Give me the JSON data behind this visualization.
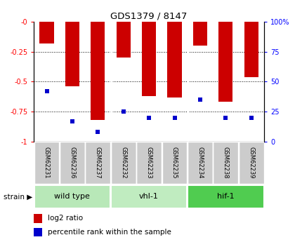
{
  "title": "GDS1379 / 8147",
  "samples": [
    "GSM62231",
    "GSM62236",
    "GSM62237",
    "GSM62232",
    "GSM62233",
    "GSM62235",
    "GSM62234",
    "GSM62238",
    "GSM62239"
  ],
  "log2_ratio": [
    -0.18,
    -0.54,
    -0.82,
    -0.3,
    -0.62,
    -0.63,
    -0.2,
    -0.67,
    -0.46
  ],
  "percentile_rank": [
    42,
    17,
    8,
    25,
    20,
    20,
    35,
    20,
    20
  ],
  "group_info": [
    {
      "start": 0,
      "end": 2,
      "label": "wild type",
      "color": "#b8e8b8"
    },
    {
      "start": 3,
      "end": 5,
      "label": "vhl-1",
      "color": "#c0ecc0"
    },
    {
      "start": 6,
      "end": 8,
      "label": "hif-1",
      "color": "#50cc50"
    }
  ],
  "ylim_left": [
    -1,
    0
  ],
  "ylim_right": [
    0,
    100
  ],
  "left_yticks": [
    -1,
    -0.75,
    -0.5,
    -0.25,
    0
  ],
  "left_yticklabels": [
    "-1",
    "-0.75",
    "-0.5",
    "-0.25",
    "-0"
  ],
  "right_yticks": [
    0,
    25,
    50,
    75,
    100
  ],
  "right_yticklabels": [
    "0",
    "25",
    "50",
    "75",
    "100%"
  ],
  "bar_color": "#cc0000",
  "marker_color": "#0000cc",
  "bar_width": 0.55,
  "background_label": "#cccccc",
  "legend_items": [
    "log2 ratio",
    "percentile rank within the sample"
  ],
  "strain_label": "strain ▶"
}
